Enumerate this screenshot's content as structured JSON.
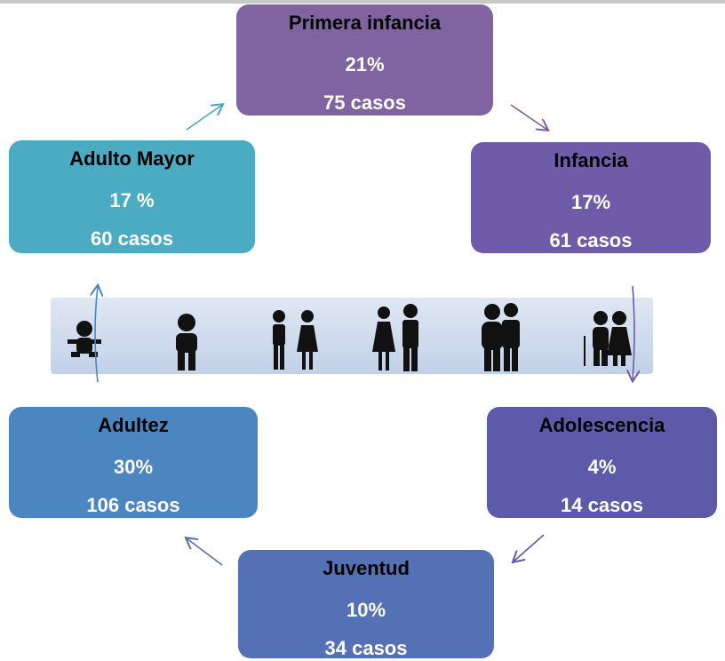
{
  "nodes": [
    {
      "title": "Primera infancia",
      "percent": "21%",
      "cases": "75 casos"
    },
    {
      "title": "Infancia",
      "percent": "17%",
      "cases": "61 casos"
    },
    {
      "title": "Adolescencia",
      "percent": "4%",
      "cases": "14 casos"
    },
    {
      "title": "Juventud",
      "percent": "10%",
      "cases": "34 casos"
    },
    {
      "title": "Adultez",
      "percent": "30%",
      "cases": "106 casos"
    },
    {
      "title": "Adulto Mayor",
      "percent": "17 %",
      "cases": "60 casos"
    }
  ]
}
